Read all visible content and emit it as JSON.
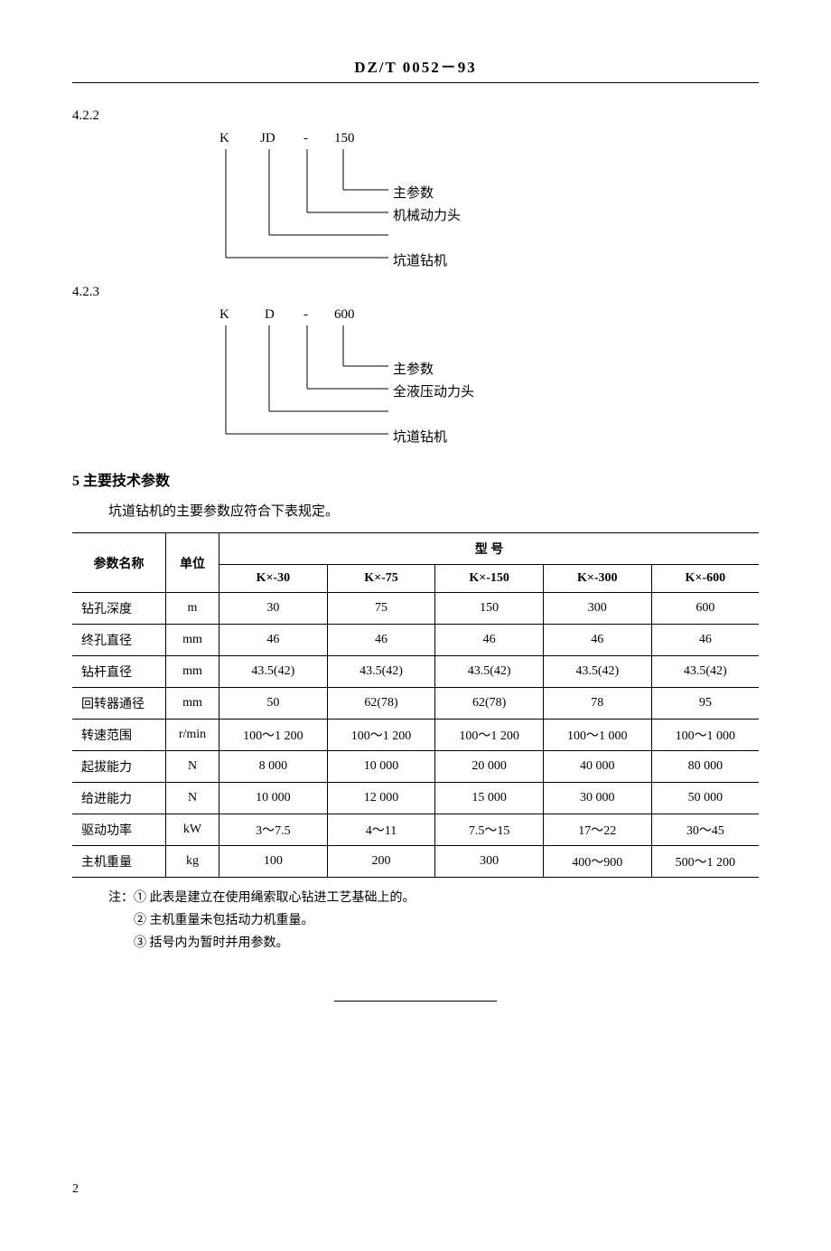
{
  "header": "DZ/T  0052－93",
  "sec422": "4.2.2",
  "sec423": "4.2.3",
  "diagramA": {
    "codeK": "K",
    "codeJD": "JD",
    "codeDash": "-",
    "codeNum": "150",
    "label1": "主参数",
    "label2": "机械动力头",
    "label3": "坑道钻机"
  },
  "diagramB": {
    "codeK": "K",
    "codeD": "D",
    "codeDash": "-",
    "codeNum": "600",
    "label1": "主参数",
    "label2": "全液压动力头",
    "label3": "坑道钻机"
  },
  "section5": {
    "heading": "5  主要技术参数",
    "intro": "坑道钻机的主要参数应符合下表规定。"
  },
  "table": {
    "h_param": "参数名称",
    "h_unit": "单位",
    "h_spanned": "型    号",
    "models": [
      "K×-30",
      "K×-75",
      "K×-150",
      "K×-300",
      "K×-600"
    ],
    "rows": [
      {
        "name": "钻孔深度",
        "unit": "m",
        "v": [
          "30",
          "75",
          "150",
          "300",
          "600"
        ]
      },
      {
        "name": "终孔直径",
        "unit": "mm",
        "v": [
          "46",
          "46",
          "46",
          "46",
          "46"
        ]
      },
      {
        "name": "钻杆直径",
        "unit": "mm",
        "v": [
          "43.5(42)",
          "43.5(42)",
          "43.5(42)",
          "43.5(42)",
          "43.5(42)"
        ]
      },
      {
        "name": "回转器通径",
        "unit": "mm",
        "v": [
          "50",
          "62(78)",
          "62(78)",
          "78",
          "95"
        ]
      },
      {
        "name": "转速范围",
        "unit": "r/min",
        "v": [
          "100～1 200",
          "100～1 200",
          "100～1 200",
          "100～1 000",
          "100～1 000"
        ]
      },
      {
        "name": "起拔能力",
        "unit": "N",
        "v": [
          "8 000",
          "10 000",
          "20 000",
          "40 000",
          "80 000"
        ]
      },
      {
        "name": "给进能力",
        "unit": "N",
        "v": [
          "10 000",
          "12 000",
          "15 000",
          "30 000",
          "50 000"
        ]
      },
      {
        "name": "驱动功率",
        "unit": "kW",
        "v": [
          "3～7.5",
          "4～11",
          "7.5～15",
          "17～22",
          "30～45"
        ]
      },
      {
        "name": "主机重量",
        "unit": "kg",
        "v": [
          "100",
          "200",
          "300",
          "400～900",
          "500～1 200"
        ]
      }
    ]
  },
  "notes": {
    "prefix": "注：",
    "n1": "① 此表是建立在使用绳索取心钻进工艺基础上的。",
    "n2": "② 主机重量未包括动力机重量。",
    "n3": "③ 括号内为暂时并用参数。"
  },
  "pageNum": "2"
}
